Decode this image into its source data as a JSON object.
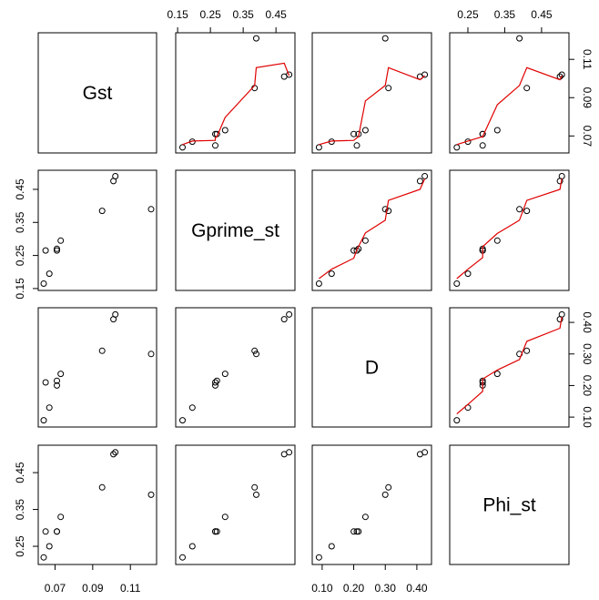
{
  "chart_data": {
    "type": "scatter",
    "matrix_type": "pairs",
    "variables": [
      "Gst",
      "Gprime_st",
      "D",
      "Phi_st"
    ],
    "observations": {
      "Gst": [
        0.064,
        0.067,
        0.071,
        0.073,
        0.071,
        0.095,
        0.101,
        0.102,
        0.121,
        0.065
      ],
      "Gprime_st": [
        0.165,
        0.195,
        0.265,
        0.295,
        0.27,
        0.385,
        0.475,
        0.49,
        0.39,
        0.265
      ],
      "D": [
        0.09,
        0.13,
        0.2,
        0.237,
        0.215,
        0.31,
        0.41,
        0.425,
        0.3,
        0.21
      ],
      "Phi_st": [
        0.22,
        0.25,
        0.29,
        0.33,
        0.29,
        0.41,
        0.5,
        0.505,
        0.39,
        0.29
      ]
    },
    "axis_ranges": {
      "Gst": [
        0.0635,
        0.1215
      ],
      "Gprime_st": [
        0.158,
        0.494
      ],
      "D": [
        0.083,
        0.432
      ],
      "Phi_st": [
        0.213,
        0.512
      ]
    },
    "ticks": {
      "Gst": [
        "0.07",
        "0.09",
        "0.11"
      ],
      "Gprime_st": [
        "0.15",
        "0.25",
        "0.35",
        "0.45"
      ],
      "D": [
        "0.10",
        "0.20",
        "0.30",
        "0.40"
      ],
      "Phi_st": [
        "0.25",
        "0.35",
        "0.45"
      ]
    },
    "smoother": {
      "panels": "upper",
      "color": "#e00000"
    },
    "point_style": "open-circle",
    "grid": false,
    "legend": "none",
    "colors": {
      "points": "#000000",
      "smoother": "#e00000",
      "frame": "#000000"
    }
  }
}
